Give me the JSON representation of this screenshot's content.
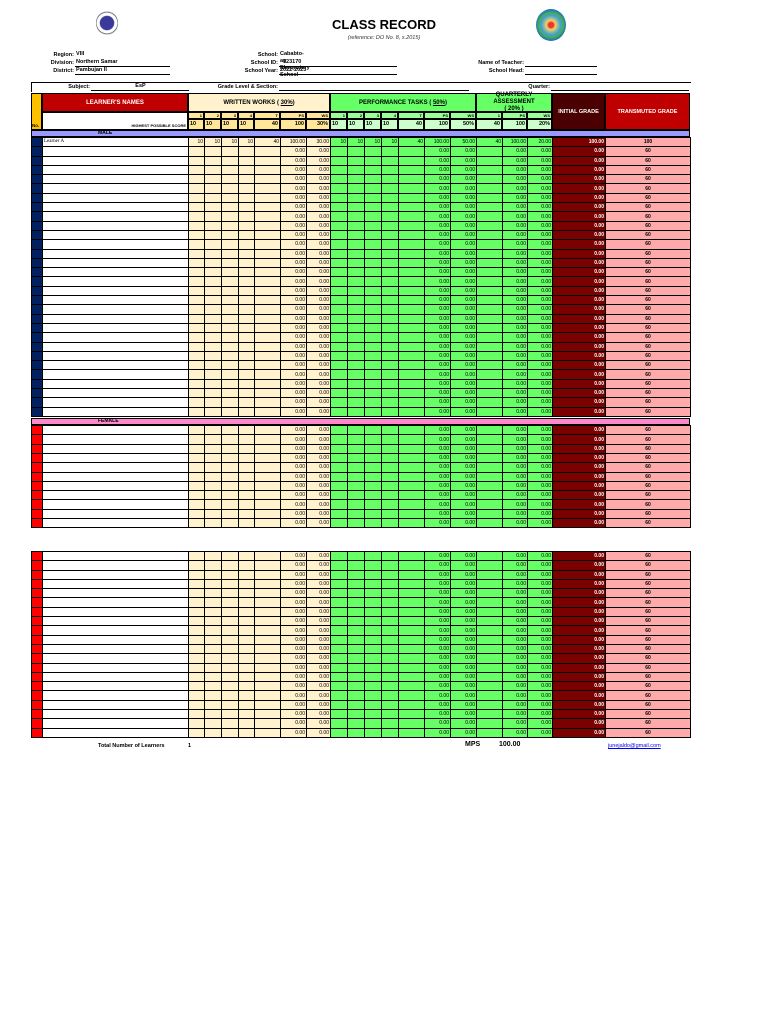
{
  "header": {
    "title": "CLASS RECORD",
    "subtitle": "(reference: DO No. 8, s.2015)",
    "left_logo": "deped-seal-icon",
    "right_logo": "school-seal-icon"
  },
  "info": {
    "region_label": "Region:",
    "region": "VIII",
    "division_label": "Division:",
    "division": "Northern Samar",
    "district_label": "District:",
    "district": "Pambujan II",
    "school_label": "School:",
    "school": "Cababto-an Elementary School",
    "school_id_label": "School ID:",
    "school_id": "123170",
    "school_year_label": "School Year:",
    "school_year": "2022-2023",
    "teacher_label": "Name of Teacher:",
    "teacher": "",
    "head_label": "School Head:",
    "head": "",
    "subject_label": "Subject:",
    "subject": "EsP",
    "grade_label": "Grade Level & Section:",
    "grade": "",
    "quarter_label": "Quarter:",
    "quarter": ""
  },
  "columns": {
    "no": "No.",
    "names": "LEARNER'S NAMES",
    "hps_label": "HIGHEST POSSIBLE SCORE",
    "ww_title": "WRITTEN WORKS (",
    "ww_pct": "30%",
    "pt_title": "PERFORMANCE TASKS (",
    "pt_pct": "50%",
    "qa_title": "QUARTERLY ASSESSMENT",
    "qa_pct": "20%",
    "close_paren": ")",
    "initial": "INITIAL GRADE",
    "transmuted": "TRANSMUTED GRADE",
    "ww_sub": [
      "1",
      "2",
      "3",
      "4",
      "T",
      "PS",
      "WS"
    ],
    "pt_sub": [
      "1",
      "2",
      "3",
      "4",
      "T",
      "PS",
      "WS"
    ],
    "qa_sub": [
      "1",
      "PS",
      "WS"
    ],
    "ww_hps": [
      "10",
      "10",
      "10",
      "10",
      "40",
      "100",
      "30%"
    ],
    "pt_hps": [
      "10",
      "10",
      "10",
      "10",
      "40",
      "100",
      "50%"
    ],
    "qa_hps": [
      "40",
      "100",
      "20%"
    ]
  },
  "sections": {
    "male_label": "MALE",
    "female_label": "FEMALE"
  },
  "male_rows": [
    {
      "name": "Learner A",
      "ww": [
        "10",
        "10",
        "10",
        "10",
        "40",
        "100.00",
        "30.00"
      ],
      "pt": [
        "10",
        "10",
        "10",
        "10",
        "40",
        "100.00",
        "50.00"
      ],
      "qa": [
        "40",
        "100.00",
        "20.00"
      ],
      "initial": "100.00",
      "transmuted": "100"
    }
  ],
  "empty_row": {
    "ww_ps": "0.00",
    "ww_ws": "0.00",
    "pt_ps": "0.00",
    "pt_ws": "0.00",
    "qa_ps": "0.00",
    "qa_ws": "0.00",
    "initial": "0.00",
    "transmuted": "60"
  },
  "row_counts": {
    "male": 30,
    "female": 11,
    "extra": 20
  },
  "footer": {
    "total_label": "Total Number of Learners",
    "total": "1",
    "mps_label": "MPS",
    "mps": "100.00",
    "email": "junejaldo@gmail.com"
  },
  "colors": {
    "ww_bg": "#fff2cc",
    "pt_bg": "#66ff66",
    "initial_bg": "#7b0000",
    "transmuted_bg": "#ffaaaa",
    "names_header_bg": "#c00000",
    "male_band": "#9999ff",
    "female_band": "#ff88cc"
  }
}
